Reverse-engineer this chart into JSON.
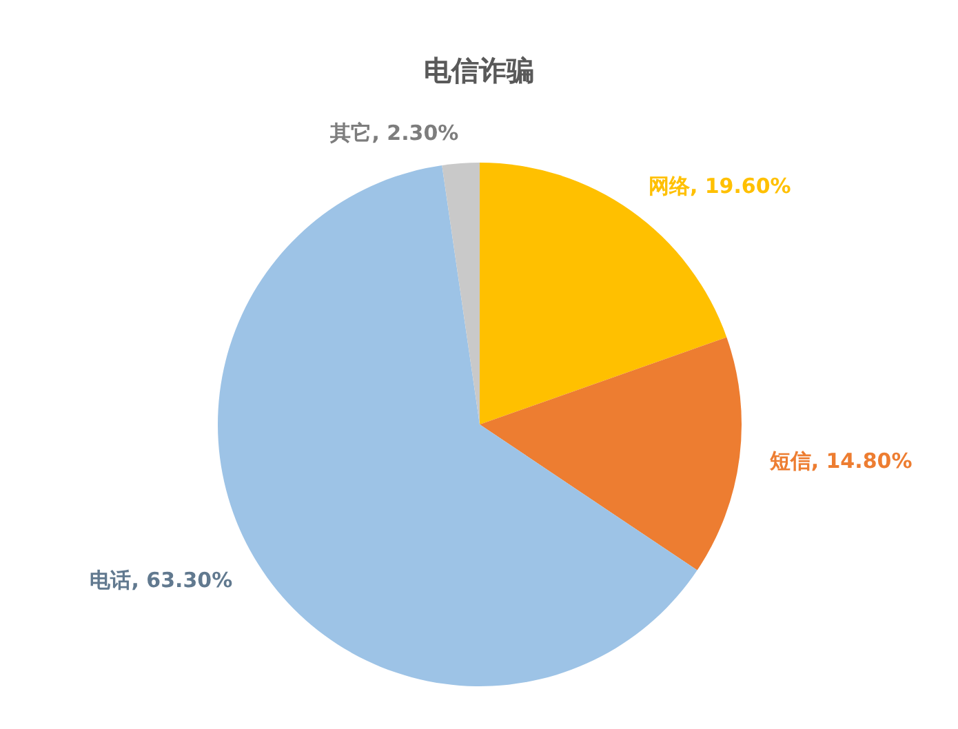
{
  "chart_data": {
    "type": "pie",
    "title": "电信诈骗",
    "categories": [
      "网络",
      "短信",
      "电话",
      "其它"
    ],
    "values": [
      19.6,
      14.8,
      63.3,
      2.3
    ],
    "colors": [
      "#ffc000",
      "#ed7d31",
      "#9dc3e6",
      "#c9c9c9"
    ],
    "value_labels": [
      "19.60%",
      "14.80%",
      "63.30%",
      "2.30%"
    ],
    "legend": false
  }
}
